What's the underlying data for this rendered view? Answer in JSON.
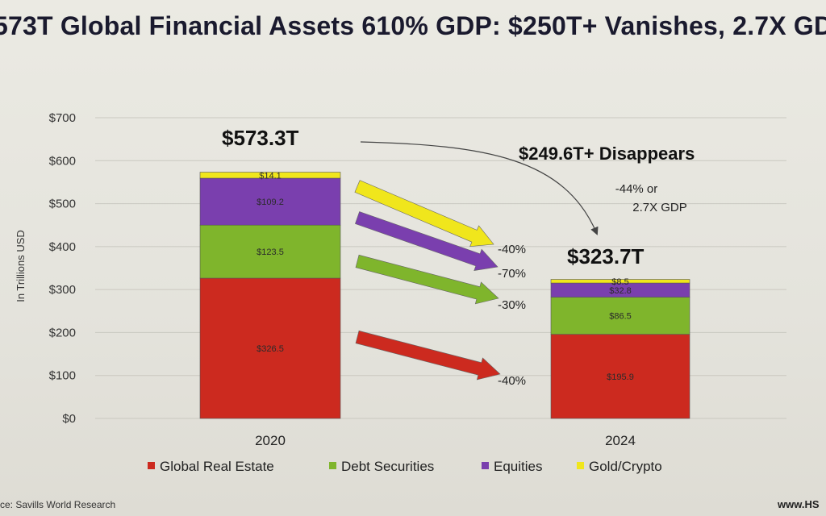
{
  "title": "573T Global Financial Assets 610% GDP: $250T+ Vanishes, 2.7X GD",
  "source": "ce: Savills World Research",
  "site": "www.HS",
  "colors": {
    "real_estate": "#cc2a1f",
    "debt": "#7fb52c",
    "equities": "#7a3fae",
    "gold_crypto": "#f0e61c",
    "grid": "#c9c8c0"
  },
  "chart_data": {
    "type": "bar",
    "stacked": true,
    "ylabel": "In Trillions USD",
    "ylim": [
      0,
      700
    ],
    "yticks": [
      {
        "value": 0,
        "label": "$0"
      },
      {
        "value": 100,
        "label": "$100"
      },
      {
        "value": 200,
        "label": "$200"
      },
      {
        "value": 300,
        "label": "$300"
      },
      {
        "value": 400,
        "label": "$400"
      },
      {
        "value": 500,
        "label": "$500"
      },
      {
        "value": 600,
        "label": "$600"
      },
      {
        "value": 700,
        "label": "$700"
      }
    ],
    "grid": true,
    "categories": [
      "2020",
      "2024"
    ],
    "series": [
      {
        "name": "Global Real Estate",
        "values": [
          326.5,
          195.9
        ],
        "labels": [
          "$326.5",
          "$195.9"
        ],
        "color": "#cc2a1f"
      },
      {
        "name": "Debt Securities",
        "values": [
          123.5,
          86.5
        ],
        "labels": [
          "$123.5",
          "$86.5"
        ],
        "color": "#7fb52c"
      },
      {
        "name": "Equities",
        "values": [
          109.2,
          32.8
        ],
        "labels": [
          "$109.2",
          "$32.8"
        ],
        "color": "#7a3fae"
      },
      {
        "name": "Gold/Crypto",
        "values": [
          14.1,
          8.5
        ],
        "labels": [
          "$14.1",
          "$8.5"
        ],
        "color": "#f0e61c"
      }
    ],
    "legend_position": "bottom",
    "annotations": {
      "total_2020": "$573.3T",
      "total_2024": "$323.7T",
      "disappears": "$249.6T+ Disappears",
      "change_line1": "-44% or",
      "change_line2": "2.7X GDP",
      "pct_changes": [
        {
          "series": "Gold/Crypto",
          "label": "-40%"
        },
        {
          "series": "Equities",
          "label": "-70%"
        },
        {
          "series": "Debt Securities",
          "label": "-30%"
        },
        {
          "series": "Global Real Estate",
          "label": "-40%"
        }
      ]
    }
  }
}
